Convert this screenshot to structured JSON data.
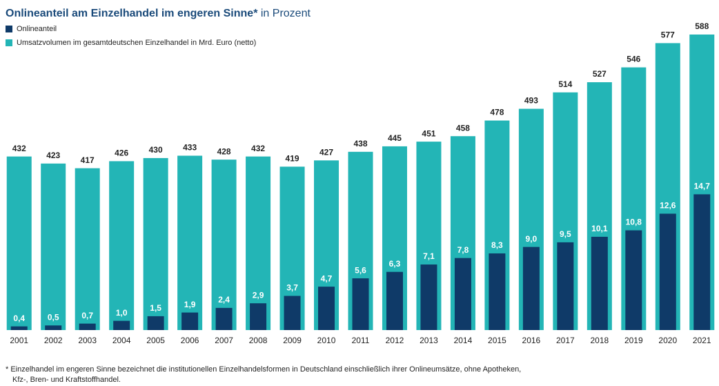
{
  "chart_data": {
    "type": "bar",
    "title": "Onlineanteil am Einzelhandel im engeren Sinne*",
    "subtitle": "in Prozent",
    "categories": [
      "2001",
      "2002",
      "2003",
      "2004",
      "2005",
      "2006",
      "2007",
      "2008",
      "2009",
      "2010",
      "2011",
      "2012",
      "2013",
      "2014",
      "2015",
      "2016",
      "2017",
      "2018",
      "2019",
      "2020",
      "2021"
    ],
    "series": [
      {
        "name": "Onlineanteil",
        "color": "#0f3a68",
        "axis": "y2",
        "values": [
          0.4,
          0.5,
          0.7,
          1.0,
          1.5,
          1.9,
          2.4,
          2.9,
          3.7,
          4.7,
          5.6,
          6.3,
          7.1,
          7.8,
          8.3,
          9.0,
          9.5,
          10.1,
          10.8,
          12.6,
          14.7
        ],
        "value_labels": [
          "0,4",
          "0,5",
          "0,7",
          "1,0",
          "1,5",
          "1,9",
          "2,4",
          "2,9",
          "3,7",
          "4,7",
          "5,6",
          "6,3",
          "7,1",
          "7,8",
          "8,3",
          "9,0",
          "9,5",
          "10,1",
          "10,8",
          "12,6",
          "14,7"
        ]
      },
      {
        "name": "Umsatzvolumen im gesamtdeutschen Einzelhandel in Mrd. Euro (netto)",
        "color": "#23b5b6",
        "axis": "y",
        "values": [
          432,
          423,
          417,
          426,
          430,
          433,
          428,
          432,
          419,
          427,
          438,
          445,
          451,
          458,
          478,
          493,
          514,
          527,
          546,
          577,
          588
        ]
      }
    ],
    "ylim": [
      210,
      588
    ],
    "y2lim": [
      0,
      32
    ],
    "note": [
      "* Einzelhandel im engeren Sinne bezeichnet die institutionellen Einzelhandelsformen in Deutschland einschließlich ihrer Onlineumsätze, ohne Apotheken,",
      "Kfz-, Bren- und Kraftstoffhandel."
    ]
  }
}
